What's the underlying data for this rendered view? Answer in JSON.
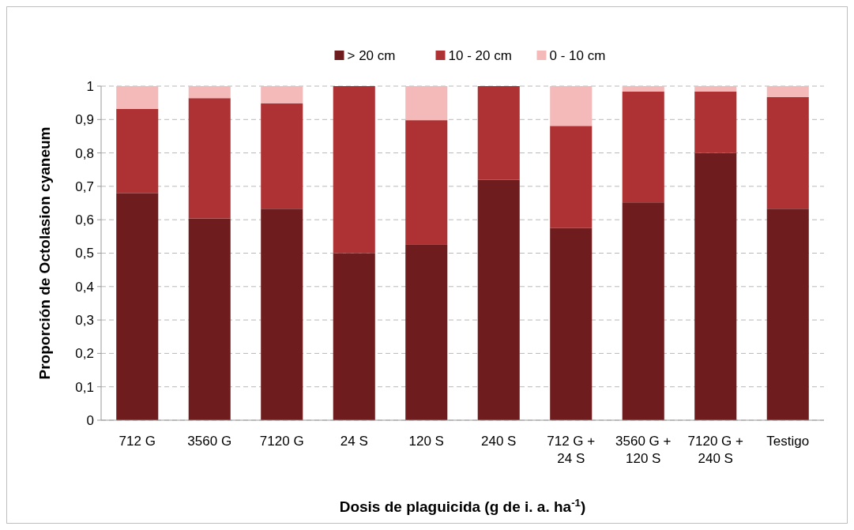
{
  "chart_data": {
    "type": "bar",
    "stacked": true,
    "xlabel": "Dosis de plaguicida (g de i. a. ha$^{-1}$)",
    "ylabel": "Proporción de Octolasion cyaneum",
    "categories": [
      "712 G",
      "3560 G",
      "7120 G",
      "24 S",
      "120 S",
      "240 S",
      "712 G + 24 S",
      "3560 G + 120 S",
      "7120 G + 240 S",
      "Testigo"
    ],
    "series": [
      {
        "name": "> 20 cm",
        "color": "#6f1c1e",
        "values": [
          0.68,
          0.604,
          0.633,
          0.5,
          0.525,
          0.72,
          0.575,
          0.652,
          0.8,
          0.633
        ]
      },
      {
        "name": "10 - 20 cm",
        "color": "#ae3134",
        "values": [
          0.252,
          0.36,
          0.315,
          0.5,
          0.373,
          0.28,
          0.306,
          0.332,
          0.184,
          0.334
        ]
      },
      {
        "name": "0 - 10 cm",
        "color": "#f4b9b9",
        "values": [
          0.068,
          0.036,
          0.052,
          0,
          0.102,
          0,
          0.119,
          0.016,
          0.016,
          0.033
        ]
      }
    ],
    "ylim": [
      0,
      1
    ],
    "yticks": [
      0,
      {
        "value": 0.1,
        "label": "0,1"
      },
      {
        "value": 0.2,
        "label": "0,2"
      },
      {
        "value": 0.3,
        "label": "0,3"
      },
      {
        "value": 0.4,
        "label": "0,4"
      },
      {
        "value": 0.5,
        "label": "0,5"
      },
      {
        "value": 0.6,
        "label": "0,6"
      },
      {
        "value": 0.7,
        "label": "0,7"
      },
      {
        "value": 0.8,
        "label": "0,8"
      },
      {
        "value": 0.9,
        "label": "0,9"
      },
      1
    ],
    "grid": "y",
    "legend": "top"
  }
}
